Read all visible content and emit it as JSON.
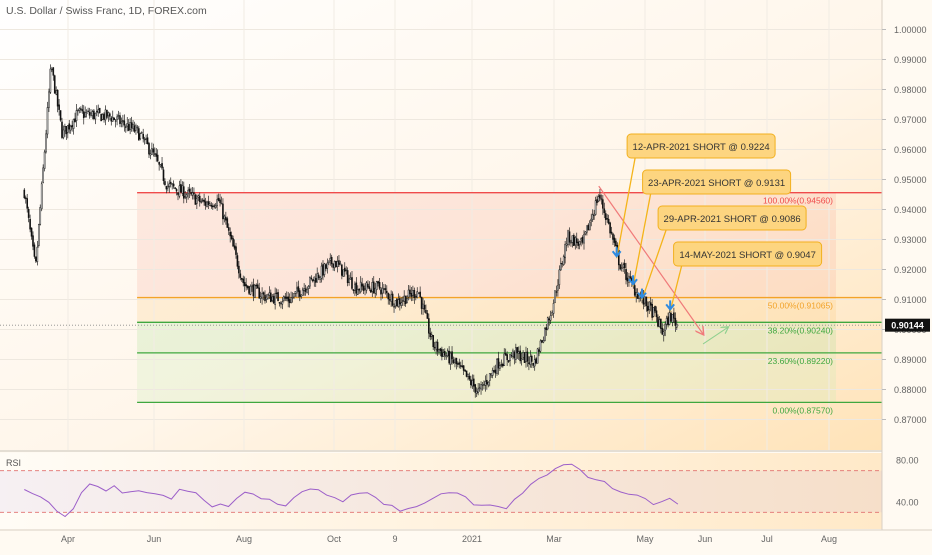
{
  "chart_data": {
    "type": "candlestick",
    "title": "U.S. Dollar / Swiss Franc, 1D, FOREX.com",
    "y_range": [
      0.865,
      1.005
    ],
    "y_ticks": [
      "1.00000",
      "0.99000",
      "0.98000",
      "0.97000",
      "0.96000",
      "0.95000",
      "0.94000",
      "0.93000",
      "0.92000",
      "0.91000",
      "0.90000",
      "0.89000",
      "0.88000",
      "0.87000"
    ],
    "x_ticks": [
      "Apr",
      "Jun",
      "Aug",
      "Oct",
      "9",
      "2021",
      "Mar",
      "May",
      "Jun",
      "Jul",
      "Aug"
    ],
    "current_price": {
      "value": 0.90144,
      "label": "0.90144"
    },
    "price_path": [
      {
        "date": "2020-03-01",
        "price": 0.946
      },
      {
        "date": "2020-03-09",
        "price": 0.92
      },
      {
        "date": "2020-03-20",
        "price": 0.988
      },
      {
        "date": "2020-03-28",
        "price": 0.965
      },
      {
        "date": "2020-04-08",
        "price": 0.972
      },
      {
        "date": "2020-05-01",
        "price": 0.971
      },
      {
        "date": "2020-05-20",
        "price": 0.966
      },
      {
        "date": "2020-06-01",
        "price": 0.958
      },
      {
        "date": "2020-06-10",
        "price": 0.948
      },
      {
        "date": "2020-06-20",
        "price": 0.946
      },
      {
        "date": "2020-07-05",
        "price": 0.942
      },
      {
        "date": "2020-07-15",
        "price": 0.943
      },
      {
        "date": "2020-08-01",
        "price": 0.915
      },
      {
        "date": "2020-08-15",
        "price": 0.911
      },
      {
        "date": "2020-09-01",
        "price": 0.91
      },
      {
        "date": "2020-09-20",
        "price": 0.918
      },
      {
        "date": "2020-10-01",
        "price": 0.923
      },
      {
        "date": "2020-10-15",
        "price": 0.914
      },
      {
        "date": "2020-10-30",
        "price": 0.914
      },
      {
        "date": "2020-11-10",
        "price": 0.909
      },
      {
        "date": "2020-11-25",
        "price": 0.913
      },
      {
        "date": "2020-12-05",
        "price": 0.895
      },
      {
        "date": "2020-12-20",
        "price": 0.889
      },
      {
        "date": "2021-01-06",
        "price": 0.879
      },
      {
        "date": "2021-01-20",
        "price": 0.889
      },
      {
        "date": "2021-02-01",
        "price": 0.892
      },
      {
        "date": "2021-02-15",
        "price": 0.889
      },
      {
        "date": "2021-02-28",
        "price": 0.908
      },
      {
        "date": "2021-03-10",
        "price": 0.931
      },
      {
        "date": "2021-03-20",
        "price": 0.928
      },
      {
        "date": "2021-03-31",
        "price": 0.945
      },
      {
        "date": "2021-04-06",
        "price": 0.936
      },
      {
        "date": "2021-04-14",
        "price": 0.922
      },
      {
        "date": "2021-04-23",
        "price": 0.914
      },
      {
        "date": "2021-04-29",
        "price": 0.91
      },
      {
        "date": "2021-05-06",
        "price": 0.905
      },
      {
        "date": "2021-05-10",
        "price": 0.899
      },
      {
        "date": "2021-05-14",
        "price": 0.9047
      },
      {
        "date": "2021-05-18",
        "price": 0.9014
      }
    ],
    "fib_levels": [
      {
        "label": "100.00%(0.94560)",
        "value": 0.9456,
        "color": "#ef4b4b"
      },
      {
        "label": "50.00%(0.91065)",
        "value": 0.91065,
        "color": "#f2a32a"
      },
      {
        "label": "38.20%(0.90240)",
        "value": 0.9024,
        "color": "#3fa73f"
      },
      {
        "label": "23.60%(0.89220)",
        "value": 0.8922,
        "color": "#3fa73f"
      },
      {
        "label": "0.00%(0.87570)",
        "value": 0.8757,
        "color": "#3fa73f"
      }
    ],
    "annotations": [
      {
        "text": "12-APR-2021 SHORT @ 0.9224",
        "date": "2021-04-12",
        "price": 0.9224
      },
      {
        "text": "23-APR-2021 SHORT @ 0.9131",
        "date": "2021-04-23",
        "price": 0.9131
      },
      {
        "text": "29-APR-2021 SHORT @ 0.9086",
        "date": "2021-04-29",
        "price": 0.9086
      },
      {
        "text": "14-MAY-2021 SHORT @ 0.9047",
        "date": "2021-05-14",
        "price": 0.9047
      }
    ],
    "rsi": {
      "label": "RSI",
      "levels": [
        {
          "label": "80.00",
          "value": 80
        },
        {
          "label": "40.00",
          "value": 40
        }
      ],
      "upper_band": 70,
      "lower_band": 30,
      "range": [
        15,
        85
      ],
      "values": [
        52,
        48,
        45,
        38,
        34,
        28,
        36,
        50,
        58,
        55,
        52,
        54,
        50,
        48,
        52,
        50,
        48,
        46,
        44,
        50,
        49,
        47,
        42,
        38,
        36,
        34,
        44,
        50,
        48,
        45,
        40,
        38,
        36,
        46,
        48,
        50,
        52,
        48,
        42,
        40,
        44,
        48,
        46,
        42,
        38,
        36,
        34,
        33,
        35,
        38,
        42,
        46,
        50,
        48,
        44,
        40,
        38,
        36,
        34,
        36,
        42,
        50,
        54,
        60,
        66,
        70,
        74,
        76,
        70,
        64,
        60,
        58,
        54,
        48,
        46,
        44,
        42,
        40,
        42,
        41,
        40
      ]
    }
  }
}
